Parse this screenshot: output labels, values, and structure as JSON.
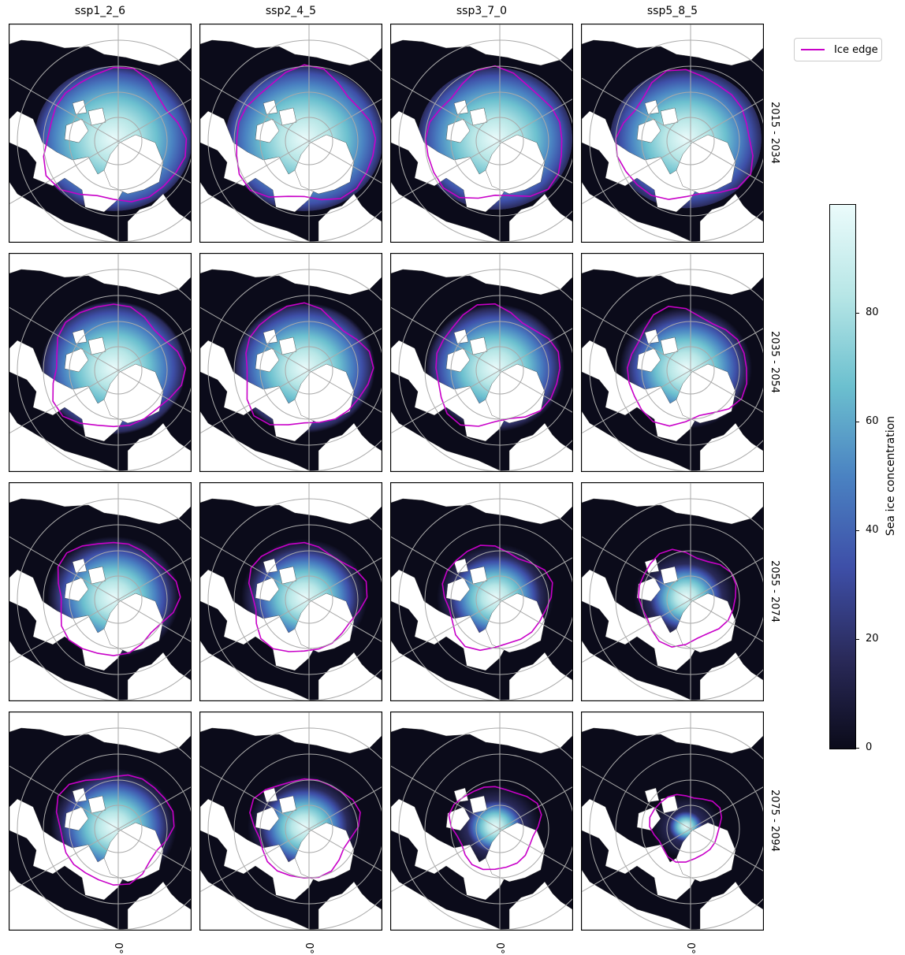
{
  "columns": [
    "ssp1_2_6",
    "ssp2_4_5",
    "ssp3_7_0",
    "ssp5_8_5"
  ],
  "rows": [
    "2015 - 2034",
    "2035 - 2054",
    "2055 - 2074",
    "2075 - 2094"
  ],
  "longitude_label": "0°",
  "legend": {
    "label": "Ice edge",
    "color": "#c800c8"
  },
  "colorbar": {
    "title": "Sea ice concentration",
    "ticks": [
      "0",
      "20",
      "40",
      "60",
      "80"
    ],
    "range": [
      0,
      100
    ],
    "colors": [
      "#0b0b1a",
      "#2a2a5a",
      "#3e4fa8",
      "#4a82c2",
      "#6cc0cf",
      "#b7e6e6",
      "#ebfbfb"
    ]
  },
  "map_colors": {
    "ocean_ice_free": "#0b0b1a",
    "land": "#ffffff",
    "grid": "#aaaaaa",
    "ice_edge": "#c800c8"
  },
  "sea_ice_extent": [
    [
      1.0,
      1.0,
      0.98,
      0.96
    ],
    [
      0.92,
      0.9,
      0.88,
      0.84
    ],
    [
      0.84,
      0.8,
      0.74,
      0.66
    ],
    [
      0.8,
      0.72,
      0.58,
      0.44
    ]
  ]
}
